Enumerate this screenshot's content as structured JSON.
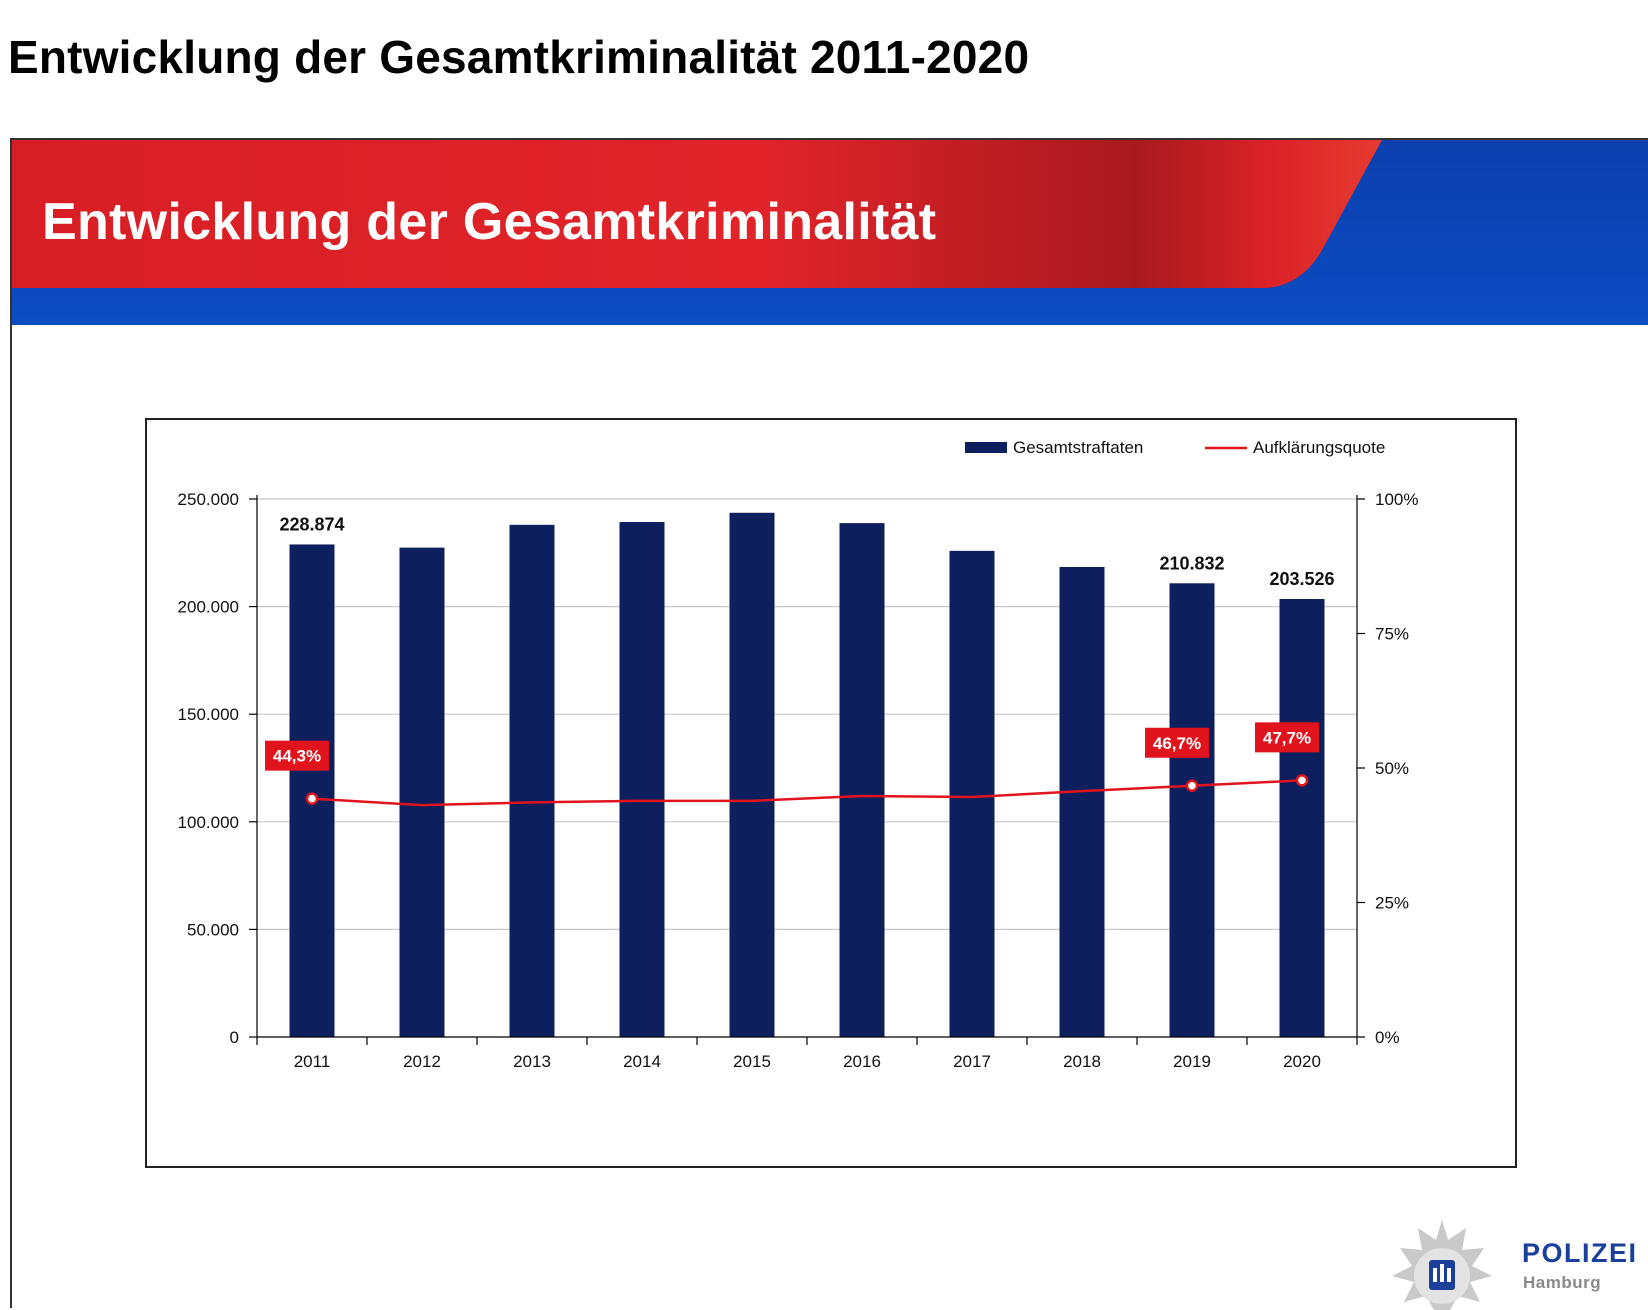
{
  "page_title": "Entwicklung der Gesamtkriminalität 2011-2020",
  "slide": {
    "banner_title": "Entwicklung der Gesamtkriminalität",
    "colors": {
      "banner_red": "#e01f26",
      "banner_dark_red": "#a91a1f",
      "banner_blue": "#0a45b8",
      "bar": "#0e1f5e",
      "line": "#e1141e"
    }
  },
  "chart_data": {
    "type": "bar",
    "categories": [
      "2011",
      "2012",
      "2013",
      "2014",
      "2015",
      "2016",
      "2017",
      "2018",
      "2019",
      "2020"
    ],
    "series": [
      {
        "name": "Gesamtstraftaten",
        "type": "bar",
        "axis": "left",
        "color": "#0e1f5e",
        "values": [
          228874,
          227400,
          238000,
          239300,
          243600,
          238800,
          225900,
          218400,
          210832,
          203526
        ],
        "data_labels": {
          "0": "228.874",
          "8": "210.832",
          "9": "203.526"
        }
      },
      {
        "name": "Aufklärungsquote",
        "type": "line",
        "axis": "right",
        "color": "#e1141e",
        "unit": "%",
        "values": [
          44.3,
          43.1,
          43.6,
          43.9,
          43.9,
          44.8,
          44.6,
          45.7,
          46.7,
          47.7
        ],
        "data_labels": {
          "0": "44,3%",
          "8": "46,7%",
          "9": "47,7%"
        }
      }
    ],
    "y_left": {
      "ticks": [
        "0",
        "50.000",
        "100.000",
        "150.000",
        "200.000",
        "250.000"
      ],
      "tick_values": [
        0,
        50000,
        100000,
        150000,
        200000,
        250000
      ],
      "lim": [
        0,
        250000
      ]
    },
    "y_right": {
      "ticks": [
        "0%",
        "25%",
        "50%",
        "75%",
        "100%"
      ],
      "tick_values": [
        0,
        25,
        50,
        75,
        100
      ],
      "lim": [
        0,
        100
      ]
    },
    "grid": true,
    "legend_position": "top-right"
  },
  "logo": {
    "line1": "POLIZEI",
    "line2": "Hamburg"
  }
}
